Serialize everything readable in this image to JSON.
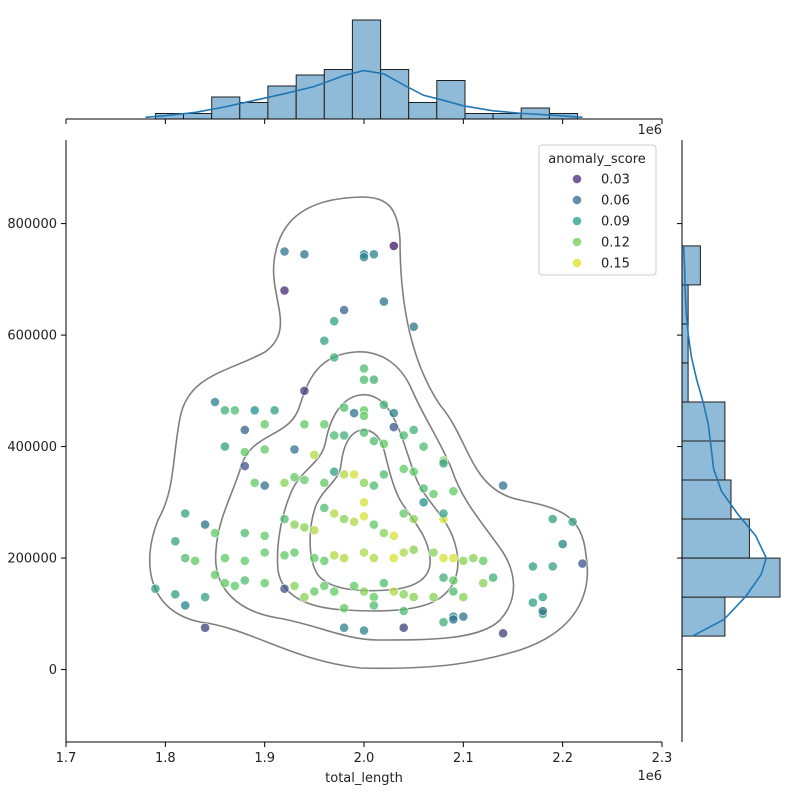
{
  "chart_data": {
    "type": "scatter",
    "subtype": "jointplot",
    "xlabel": "total_length",
    "ylabel": "",
    "x_multiplier_label": "1e6",
    "top_multiplier_label": "1e6",
    "xlim": [
      1.7,
      2.3
    ],
    "ylim": [
      -130000,
      950000
    ],
    "x_ticks": [
      1.7,
      1.8,
      1.9,
      2.0,
      2.1,
      2.2,
      2.3
    ],
    "x_tick_labels": [
      "1.7",
      "1.8",
      "1.9",
      "2.0",
      "2.1",
      "2.2",
      "2.3"
    ],
    "y_ticks": [
      0,
      200000,
      400000,
      600000,
      800000
    ],
    "y_tick_labels": [
      "0",
      "200000",
      "400000",
      "600000",
      "800000"
    ],
    "legend": {
      "title": "anomaly_score",
      "placement": "top-right",
      "entries": [
        {
          "label": "0.03",
          "color": "#482878"
        },
        {
          "label": "0.06",
          "color": "#31688e"
        },
        {
          "label": "0.09",
          "color": "#1fa088"
        },
        {
          "label": "0.12",
          "color": "#6ece58"
        },
        {
          "label": "0.15",
          "color": "#e0e21f"
        }
      ]
    },
    "colors": {
      "hist_fill": "#8fbbd9",
      "hist_edge": "#1f1f1f",
      "kde_line": "#1f77b4",
      "contour": "#7f7f7f"
    },
    "points": [
      [
        1.92,
        750000,
        0.06
      ],
      [
        1.94,
        745000,
        0.06
      ],
      [
        1.92,
        680000,
        0.02
      ],
      [
        2.0,
        745000,
        0.07
      ],
      [
        2.0,
        740000,
        0.07
      ],
      [
        2.01,
        745000,
        0.07
      ],
      [
        2.03,
        760000,
        0.01
      ],
      [
        2.05,
        615000,
        0.06
      ],
      [
        1.98,
        645000,
        0.05
      ],
      [
        2.02,
        660000,
        0.06
      ],
      [
        1.97,
        625000,
        0.09
      ],
      [
        1.96,
        590000,
        0.09
      ],
      [
        1.97,
        560000,
        0.1
      ],
      [
        1.94,
        500000,
        0.03
      ],
      [
        2.0,
        540000,
        0.11
      ],
      [
        2.0,
        520000,
        0.11
      ],
      [
        2.01,
        520000,
        0.1
      ],
      [
        1.85,
        480000,
        0.07
      ],
      [
        1.86,
        465000,
        0.1
      ],
      [
        1.87,
        465000,
        0.11
      ],
      [
        1.89,
        465000,
        0.08
      ],
      [
        1.91,
        465000,
        0.09
      ],
      [
        1.9,
        440000,
        0.12
      ],
      [
        1.88,
        430000,
        0.05
      ],
      [
        1.94,
        440000,
        0.12
      ],
      [
        1.96,
        440000,
        0.12
      ],
      [
        1.98,
        470000,
        0.11
      ],
      [
        1.99,
        460000,
        0.06
      ],
      [
        2.0,
        465000,
        0.12
      ],
      [
        2.0,
        455000,
        0.12
      ],
      [
        2.02,
        475000,
        0.1
      ],
      [
        2.03,
        460000,
        0.07
      ],
      [
        2.03,
        435000,
        0.04
      ],
      [
        1.86,
        400000,
        0.09
      ],
      [
        1.88,
        390000,
        0.12
      ],
      [
        1.9,
        395000,
        0.12
      ],
      [
        1.93,
        395000,
        0.06
      ],
      [
        1.95,
        385000,
        0.14
      ],
      [
        1.97,
        420000,
        0.11
      ],
      [
        1.98,
        420000,
        0.1
      ],
      [
        2.0,
        425000,
        0.11
      ],
      [
        2.01,
        410000,
        0.11
      ],
      [
        2.02,
        405000,
        0.12
      ],
      [
        2.04,
        420000,
        0.11
      ],
      [
        2.05,
        430000,
        0.1
      ],
      [
        2.06,
        400000,
        0.11
      ],
      [
        2.08,
        375000,
        0.13
      ],
      [
        2.08,
        370000,
        0.09
      ],
      [
        1.88,
        365000,
        0.04
      ],
      [
        1.89,
        335000,
        0.12
      ],
      [
        1.9,
        330000,
        0.06
      ],
      [
        1.92,
        335000,
        0.13
      ],
      [
        1.93,
        345000,
        0.12
      ],
      [
        1.94,
        340000,
        0.12
      ],
      [
        1.96,
        335000,
        0.12
      ],
      [
        1.97,
        355000,
        0.09
      ],
      [
        1.98,
        350000,
        0.14
      ],
      [
        1.99,
        350000,
        0.15
      ],
      [
        2.0,
        335000,
        0.13
      ],
      [
        2.01,
        330000,
        0.11
      ],
      [
        2.02,
        350000,
        0.11
      ],
      [
        2.04,
        360000,
        0.12
      ],
      [
        2.05,
        355000,
        0.12
      ],
      [
        2.06,
        325000,
        0.11
      ],
      [
        2.07,
        315000,
        0.12
      ],
      [
        2.09,
        320000,
        0.12
      ],
      [
        2.14,
        330000,
        0.06
      ],
      [
        1.82,
        280000,
        0.09
      ],
      [
        1.88,
        245000,
        0.11
      ],
      [
        1.9,
        240000,
        0.12
      ],
      [
        1.92,
        270000,
        0.11
      ],
      [
        1.93,
        260000,
        0.13
      ],
      [
        1.94,
        255000,
        0.13
      ],
      [
        1.95,
        250000,
        0.14
      ],
      [
        1.96,
        290000,
        0.11
      ],
      [
        1.97,
        280000,
        0.14
      ],
      [
        1.98,
        270000,
        0.13
      ],
      [
        1.99,
        265000,
        0.14
      ],
      [
        2.0,
        300000,
        0.15
      ],
      [
        2.0,
        275000,
        0.15
      ],
      [
        2.01,
        260000,
        0.12
      ],
      [
        2.02,
        245000,
        0.13
      ],
      [
        2.03,
        240000,
        0.15
      ],
      [
        2.04,
        280000,
        0.12
      ],
      [
        2.05,
        270000,
        0.13
      ],
      [
        2.06,
        300000,
        0.08
      ],
      [
        2.08,
        270000,
        0.15
      ],
      [
        2.08,
        280000,
        0.09
      ],
      [
        1.81,
        230000,
        0.09
      ],
      [
        1.82,
        200000,
        0.11
      ],
      [
        1.83,
        195000,
        0.12
      ],
      [
        1.84,
        260000,
        0.06
      ],
      [
        1.85,
        245000,
        0.12
      ],
      [
        1.86,
        200000,
        0.12
      ],
      [
        1.88,
        195000,
        0.12
      ],
      [
        1.9,
        210000,
        0.12
      ],
      [
        1.92,
        205000,
        0.12
      ],
      [
        1.93,
        210000,
        0.12
      ],
      [
        1.95,
        200000,
        0.12
      ],
      [
        1.96,
        195000,
        0.12
      ],
      [
        1.97,
        205000,
        0.14
      ],
      [
        1.98,
        200000,
        0.14
      ],
      [
        2.0,
        210000,
        0.14
      ],
      [
        2.01,
        200000,
        0.14
      ],
      [
        2.03,
        200000,
        0.15
      ],
      [
        2.04,
        210000,
        0.14
      ],
      [
        2.05,
        215000,
        0.13
      ],
      [
        2.07,
        210000,
        0.13
      ],
      [
        2.08,
        200000,
        0.15
      ],
      [
        2.09,
        200000,
        0.15
      ],
      [
        2.1,
        195000,
        0.13
      ],
      [
        2.11,
        200000,
        0.13
      ],
      [
        2.12,
        195000,
        0.12
      ],
      [
        2.13,
        165000,
        0.1
      ],
      [
        2.17,
        185000,
        0.09
      ],
      [
        2.19,
        185000,
        0.09
      ],
      [
        2.19,
        270000,
        0.09
      ],
      [
        2.21,
        265000,
        0.09
      ],
      [
        2.2,
        225000,
        0.07
      ],
      [
        2.22,
        190000,
        0.04
      ],
      [
        1.79,
        145000,
        0.09
      ],
      [
        1.81,
        135000,
        0.09
      ],
      [
        1.82,
        115000,
        0.07
      ],
      [
        1.84,
        130000,
        0.09
      ],
      [
        1.85,
        170000,
        0.12
      ],
      [
        1.86,
        155000,
        0.12
      ],
      [
        1.87,
        150000,
        0.12
      ],
      [
        1.88,
        160000,
        0.11
      ],
      [
        1.9,
        155000,
        0.12
      ],
      [
        1.92,
        145000,
        0.04
      ],
      [
        1.93,
        150000,
        0.13
      ],
      [
        1.94,
        130000,
        0.13
      ],
      [
        1.95,
        140000,
        0.12
      ],
      [
        1.96,
        150000,
        0.12
      ],
      [
        1.97,
        140000,
        0.12
      ],
      [
        1.99,
        150000,
        0.12
      ],
      [
        2.0,
        140000,
        0.13
      ],
      [
        2.01,
        130000,
        0.12
      ],
      [
        2.02,
        155000,
        0.11
      ],
      [
        2.03,
        140000,
        0.14
      ],
      [
        2.04,
        135000,
        0.13
      ],
      [
        2.05,
        130000,
        0.13
      ],
      [
        2.07,
        130000,
        0.13
      ],
      [
        2.08,
        165000,
        0.1
      ],
      [
        2.09,
        140000,
        0.11
      ],
      [
        2.09,
        160000,
        0.12
      ],
      [
        2.1,
        130000,
        0.13
      ],
      [
        2.12,
        155000,
        0.13
      ],
      [
        1.98,
        110000,
        0.12
      ],
      [
        2.01,
        115000,
        0.11
      ],
      [
        2.04,
        105000,
        0.11
      ],
      [
        2.08,
        85000,
        0.1
      ],
      [
        2.09,
        95000,
        0.07
      ],
      [
        2.1,
        95000,
        0.06
      ],
      [
        2.09,
        90000,
        0.06
      ],
      [
        1.98,
        75000,
        0.07
      ],
      [
        2.0,
        70000,
        0.07
      ],
      [
        2.04,
        75000,
        0.03
      ],
      [
        2.14,
        65000,
        0.03
      ],
      [
        2.18,
        100000,
        0.09
      ],
      [
        2.17,
        120000,
        0.09
      ],
      [
        2.18,
        130000,
        0.09
      ],
      [
        2.18,
        105000,
        0.06
      ],
      [
        1.84,
        75000,
        0.03
      ]
    ],
    "marginal_x_hist": {
      "bin_edges": [
        1.79,
        1.8183,
        1.8467,
        1.875,
        1.9033,
        1.9317,
        1.96,
        1.9883,
        2.0167,
        2.045,
        2.0733,
        2.1017,
        2.13,
        2.1583,
        2.1867,
        2.215
      ],
      "counts": [
        1,
        1,
        4,
        3,
        6,
        8,
        9,
        18,
        9,
        3,
        7,
        1,
        1,
        2,
        1
      ]
    },
    "marginal_x_kde": [
      [
        1.78,
        0.3
      ],
      [
        1.8,
        0.6
      ],
      [
        1.83,
        1.2
      ],
      [
        1.86,
        2.2
      ],
      [
        1.89,
        3.4
      ],
      [
        1.92,
        4.6
      ],
      [
        1.95,
        5.9
      ],
      [
        1.98,
        7.9
      ],
      [
        2.0,
        8.8
      ],
      [
        2.02,
        8.2
      ],
      [
        2.04,
        6.2
      ],
      [
        2.06,
        4.3
      ],
      [
        2.08,
        3.4
      ],
      [
        2.1,
        2.4
      ],
      [
        2.13,
        1.5
      ],
      [
        2.16,
        1.0
      ],
      [
        2.19,
        0.7
      ],
      [
        2.22,
        0.3
      ]
    ],
    "marginal_y_hist": {
      "bin_edges": [
        60000,
        130000,
        200000,
        270000,
        340000,
        410000,
        480000,
        550000,
        620000,
        690000,
        760000
      ],
      "counts": [
        7,
        16,
        11,
        8,
        7,
        7,
        1,
        1,
        1,
        3
      ]
    },
    "marginal_y_kde": [
      [
        60000,
        2
      ],
      [
        90000,
        8
      ],
      [
        130000,
        12
      ],
      [
        170000,
        15
      ],
      [
        200000,
        16
      ],
      [
        240000,
        14
      ],
      [
        280000,
        10.5
      ],
      [
        320000,
        7.5
      ],
      [
        360000,
        6
      ],
      [
        400000,
        5.5
      ],
      [
        440000,
        5
      ],
      [
        480000,
        4
      ],
      [
        520000,
        2.8
      ],
      [
        560000,
        1.8
      ],
      [
        600000,
        1.2
      ],
      [
        640000,
        0.8
      ],
      [
        680000,
        0.6
      ],
      [
        720000,
        0.5
      ],
      [
        760000,
        0.3
      ]
    ]
  }
}
